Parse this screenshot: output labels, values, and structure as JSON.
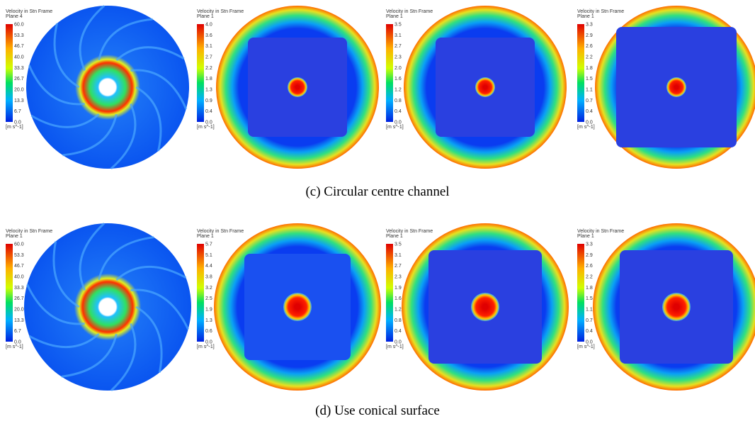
{
  "panels": [
    {
      "title": "Velocity in Stn Frame",
      "plane": "Plane 4",
      "ticks": [
        "60.0",
        "53.3",
        "46.7",
        "40.0",
        "33.3",
        "26.7",
        "20.0",
        "13.3",
        "6.7",
        "0.0"
      ],
      "unit": "[m s^-1]"
    },
    {
      "title": "Velocity in Stn Frame",
      "plane": "Plane 1",
      "ticks": [
        "4.0",
        "3.6",
        "3.1",
        "2.7",
        "2.2",
        "1.8",
        "1.3",
        "0.9",
        "0.4",
        "0.0"
      ],
      "unit": "[m s^-1]"
    },
    {
      "title": "Velocity in Stn Frame",
      "plane": "Plane 1",
      "ticks": [
        "3.5",
        "3.1",
        "2.7",
        "2.3",
        "2.0",
        "1.6",
        "1.2",
        "0.8",
        "0.4",
        "0.0"
      ],
      "unit": "[m s^-1]"
    },
    {
      "title": "Velocity in Stn Frame",
      "plane": "Plane 1",
      "ticks": [
        "3.3",
        "2.9",
        "2.6",
        "2.2",
        "1.8",
        "1.5",
        "1.1",
        "0.7",
        "0.4",
        "0.0"
      ],
      "unit": "[m s^-1]"
    },
    {
      "title": "Velocity in Stn Frame",
      "plane": "Plane 1",
      "ticks": [
        "60.0",
        "53.3",
        "46.7",
        "40.0",
        "33.3",
        "26.7",
        "20.0",
        "13.3",
        "6.7",
        "0.0"
      ],
      "unit": "[m s^-1]"
    },
    {
      "title": "Velocity in Stn Frame",
      "plane": "Plane 1",
      "ticks": [
        "5.7",
        "5.1",
        "4.4",
        "3.8",
        "3.2",
        "2.5",
        "1.9",
        "1.3",
        "0.6",
        "0.0"
      ],
      "unit": "[m s^-1]"
    },
    {
      "title": "Velocity in Stn Frame",
      "plane": "Plane 1",
      "ticks": [
        "3.5",
        "3.1",
        "2.7",
        "2.3",
        "1.9",
        "1.6",
        "1.2",
        "0.8",
        "0.4",
        "0.0"
      ],
      "unit": "[m s^-1]"
    },
    {
      "title": "Velocity in Stn Frame",
      "plane": "Plane 1",
      "ticks": [
        "3.3",
        "2.9",
        "2.6",
        "2.2",
        "1.8",
        "1.5",
        "1.1",
        "0.7",
        "0.4",
        "0.0"
      ],
      "unit": "[m s^-1]"
    }
  ],
  "captions": [
    "(c) Circular centre channel",
    "(d) Use conical surface"
  ]
}
